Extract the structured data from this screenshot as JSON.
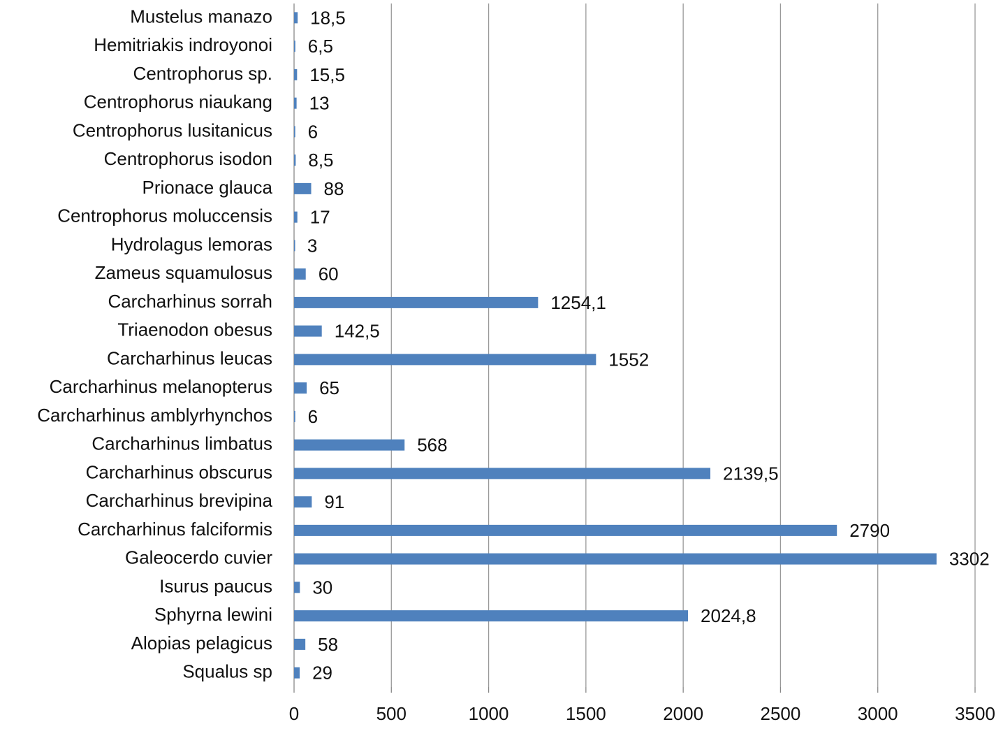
{
  "chart_data": {
    "type": "bar",
    "orientation": "horizontal",
    "categories": [
      "Mustelus manazo",
      "Hemitriakis indroyonoi",
      "Centrophorus sp.",
      "Centrophorus niaukang",
      "Centrophorus lusitanicus",
      "Centrophorus isodon",
      "Prionace glauca",
      "Centrophorus moluccensis",
      "Hydrolagus lemoras",
      "Zameus squamulosus",
      "Carcharhinus sorrah",
      "Triaenodon obesus",
      "Carcharhinus leucas",
      "Carcharhinus melanopterus",
      "Carcharhinus amblyrhynchos",
      "Carcharhinus limbatus",
      "Carcharhinus obscurus",
      "Carcharhinus brevipina",
      "Carcharhinus falciformis",
      "Galeocerdo cuvier",
      "Isurus paucus",
      "Sphyrna lewini",
      "Alopias pelagicus",
      "Squalus sp"
    ],
    "values": [
      18.5,
      6.5,
      15.5,
      13,
      6,
      8.5,
      88,
      17,
      3,
      60,
      1254.1,
      142.5,
      1552,
      65,
      6,
      568,
      2139.5,
      91,
      2790,
      3302,
      30,
      2024.8,
      58,
      29
    ],
    "value_labels": [
      "18,5",
      "6,5",
      "15,5",
      "13",
      "6",
      "8,5",
      "88",
      "17",
      "3",
      "60",
      "1254,1",
      "142,5",
      "1552",
      "65",
      "6",
      "568",
      "2139,5",
      "91",
      "2790",
      "3302",
      "30",
      "2024,8",
      "58",
      "29"
    ],
    "color": "#4f81bd",
    "xlim": [
      0,
      3500
    ],
    "xticks": [
      0,
      500,
      1000,
      1500,
      2000,
      2500,
      3000,
      3500
    ],
    "grid": true
  }
}
